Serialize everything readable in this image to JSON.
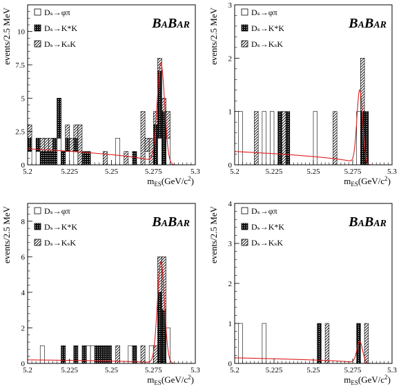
{
  "brand_text": "BABAR",
  "legend_labels": [
    "Dₛ→φπ",
    "Dₛ→K*K",
    "Dₛ→KₛK"
  ],
  "chart_data": [
    {
      "type": "bar",
      "xlabel": "m_ES(GeV/c^2)",
      "ylabel": "events/2.5 MeV",
      "xlim": [
        5.2,
        5.3
      ],
      "ylim": [
        0,
        12
      ],
      "xticks": [
        "5.2",
        "5.225",
        "5.25",
        "5.275",
        "5.3"
      ],
      "yticks": [
        "0",
        "2.5",
        "5",
        "7.5",
        "10"
      ],
      "legend_position": "top-left",
      "bin_width": 0.0025,
      "series": [
        {
          "name": "Dₛ→φπ",
          "pattern": "open",
          "x": [
            5.2,
            5.205,
            5.2175,
            5.2225,
            5.225,
            5.2275,
            5.2525,
            5.27,
            5.2775,
            5.2825
          ],
          "values": [
            1,
            1,
            2,
            1,
            1,
            1,
            2,
            1,
            2,
            2
          ]
        },
        {
          "name": "Dₛ→K*K",
          "pattern": "solid",
          "x": [
            5.2,
            5.205,
            5.2075,
            5.21,
            5.2125,
            5.215,
            5.2175,
            5.22,
            5.2225,
            5.2275,
            5.2325,
            5.235,
            5.2625,
            5.275,
            5.2775,
            5.28
          ],
          "values": [
            1,
            1,
            1,
            1,
            1,
            2,
            3,
            1,
            1,
            1,
            1,
            1,
            1,
            3,
            5,
            4
          ]
        },
        {
          "name": "Dₛ→KₛK",
          "pattern": "hatched",
          "x": [
            5.2,
            5.2075,
            5.21,
            5.2125,
            5.2225,
            5.225,
            5.2275,
            5.23,
            5.245,
            5.2575,
            5.2675,
            5.27,
            5.2725,
            5.275,
            5.2775,
            5.28,
            5.2825
          ],
          "values": [
            1,
            1,
            1,
            1,
            1,
            1,
            1,
            3,
            1,
            1,
            4,
            1,
            2,
            1,
            1,
            1,
            2
          ]
        }
      ],
      "fit_curve": {
        "background": 1.2,
        "slope": 2.0,
        "peak_mean": 5.2795,
        "peak_sigma": 0.0022,
        "peak_height": 7.6,
        "x_end": 5.293
      }
    },
    {
      "type": "bar",
      "xlabel": "m_ES(GeV/c^2)",
      "ylabel": "events/2.5 MeV",
      "xlim": [
        5.2,
        5.3
      ],
      "ylim": [
        0,
        3
      ],
      "xticks": [
        "5.2",
        "5.225",
        "5.25",
        "5.275",
        "5.3"
      ],
      "yticks": [
        "0",
        "1",
        "2",
        "3"
      ],
      "legend_position": "top-left",
      "bin_width": 0.0025,
      "series": [
        {
          "name": "Dₛ→φπ",
          "pattern": "open",
          "x": [
            5.2025,
            5.2175,
            5.2225,
            5.25,
            5.2775
          ],
          "values": [
            1,
            1,
            1,
            1,
            1
          ]
        },
        {
          "name": "Dₛ→K*K",
          "pattern": "solid",
          "x": [
            5.2275,
            5.2325,
            5.28,
            5.2825
          ],
          "values": [
            1,
            1,
            1,
            1
          ]
        },
        {
          "name": "Dₛ→KₛK",
          "pattern": "hatched",
          "x": [
            5.2125,
            5.23,
            5.2625,
            5.28
          ],
          "values": [
            1,
            1,
            1,
            1
          ]
        }
      ],
      "fit_curve": {
        "background": 0.25,
        "slope": 0.6,
        "peak_mean": 5.2795,
        "peak_sigma": 0.0018,
        "peak_height": 1.4,
        "x_end": 5.293
      }
    },
    {
      "type": "bar",
      "xlabel": "m_ES(GeV/c^2)",
      "ylabel": "events/2.5 MeV",
      "xlim": [
        5.2,
        5.3
      ],
      "ylim": [
        0,
        9
      ],
      "xticks": [
        "5.2",
        "5.225",
        "5.25",
        "5.275",
        "5.3"
      ],
      "yticks": [
        "0",
        "2",
        "4",
        "6",
        "8"
      ],
      "legend_position": "top-left",
      "bin_width": 0.0025,
      "series": [
        {
          "name": "Dₛ→φπ",
          "pattern": "open",
          "x": [
            5.2075,
            5.235,
            5.2375,
            5.26,
            5.2725,
            5.2825
          ],
          "values": [
            1,
            1,
            1,
            1,
            1,
            2
          ]
        },
        {
          "name": "Dₛ→K*K",
          "pattern": "solid",
          "x": [
            5.22,
            5.2275,
            5.2325,
            5.24,
            5.2425,
            5.245,
            5.2475,
            5.2625,
            5.2775,
            5.28
          ],
          "values": [
            1,
            1,
            1,
            1,
            1,
            1,
            1,
            1,
            4,
            3
          ]
        },
        {
          "name": "Dₛ→KₛK",
          "pattern": "hatched",
          "x": [
            5.2525,
            5.2675,
            5.275,
            5.2775,
            5.28
          ],
          "values": [
            1,
            1,
            1,
            2,
            3
          ]
        }
      ],
      "fit_curve": {
        "background": 0.2,
        "slope": 4.0,
        "peak_mean": 5.2795,
        "peak_sigma": 0.0021,
        "peak_height": 5.7,
        "x_end": 5.293
      }
    },
    {
      "type": "bar",
      "xlabel": "m_ES(GeV/c^2)",
      "ylabel": "events/2.5 MeV",
      "xlim": [
        5.2,
        5.3
      ],
      "ylim": [
        0,
        4
      ],
      "xticks": [
        "5.2",
        "5.225",
        "5.25",
        "5.275",
        "5.3"
      ],
      "yticks": [
        "0",
        "1",
        "2",
        "3",
        "4"
      ],
      "legend_position": "top-left",
      "bin_width": 0.0025,
      "series": [
        {
          "name": "Dₛ→φπ",
          "pattern": "open",
          "x": [
            5.2025,
            5.2175
          ],
          "values": [
            1,
            1
          ]
        },
        {
          "name": "Dₛ→K*K",
          "pattern": "solid",
          "x": [
            5.2525,
            5.2775
          ],
          "values": [
            1,
            1
          ]
        },
        {
          "name": "Dₛ→KₛK",
          "pattern": "hatched",
          "x": [
            5.2575,
            5.2825
          ],
          "values": [
            1,
            1
          ]
        }
      ],
      "fit_curve": {
        "background": 0.14,
        "slope": 0.1,
        "peak_mean": 5.2795,
        "peak_sigma": 0.0018,
        "peak_height": 0.55,
        "x_end": 5.293
      }
    }
  ]
}
